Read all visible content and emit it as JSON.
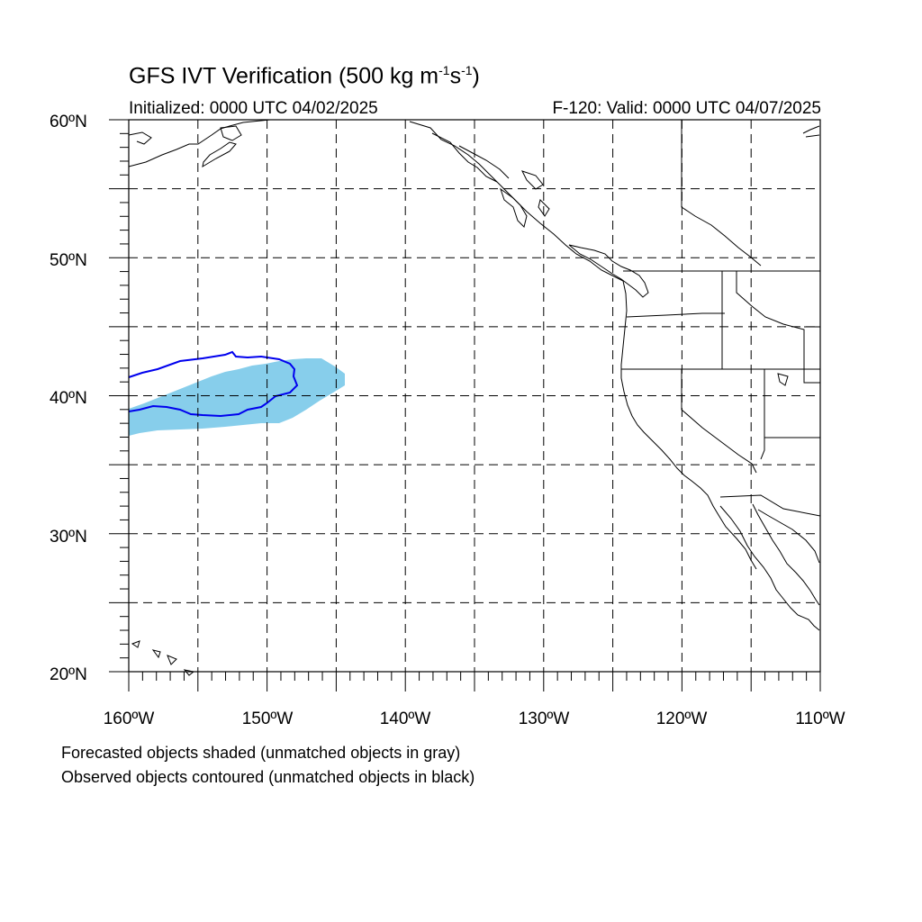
{
  "title": {
    "main": "GFS IVT Verification (500 kg m",
    "exp1": "-1",
    "mid": "s",
    "exp2": "-1",
    "end": ")"
  },
  "initialized": "Initialized: 0000 UTC 04/02/2025",
  "valid": "F-120: Valid: 0000 UTC 04/07/2025",
  "footer": {
    "line1": "Forecasted objects shaded (unmatched objects in gray)",
    "line2": "Observed objects contoured (unmatched objects in black)"
  },
  "axes": {
    "lat_labels": [
      "60ºN",
      "50ºN",
      "40ºN",
      "30ºN",
      "20ºN"
    ],
    "lon_labels": [
      "160ºW",
      "150ºW",
      "140ºW",
      "130ºW",
      "120ºW",
      "110ºW"
    ],
    "lat_range": [
      20,
      60
    ],
    "lon_range": [
      -160,
      -110
    ],
    "grid_spacing_deg": 5
  },
  "colors": {
    "forecast_fill": "#87ceeb",
    "observed_contour": "#0000ee",
    "coastline": "#000000",
    "grid": "#000000"
  },
  "map_data": {
    "forecast_object": {
      "matched": true,
      "approx_extent": {
        "lon": [
          -160,
          -144.5
        ],
        "lat": [
          37,
          42.7
        ]
      }
    },
    "observed_object": {
      "matched": true,
      "approx_extent": {
        "lon": [
          -160,
          -148.6
        ],
        "lat": [
          38.7,
          43.2
        ]
      }
    }
  }
}
